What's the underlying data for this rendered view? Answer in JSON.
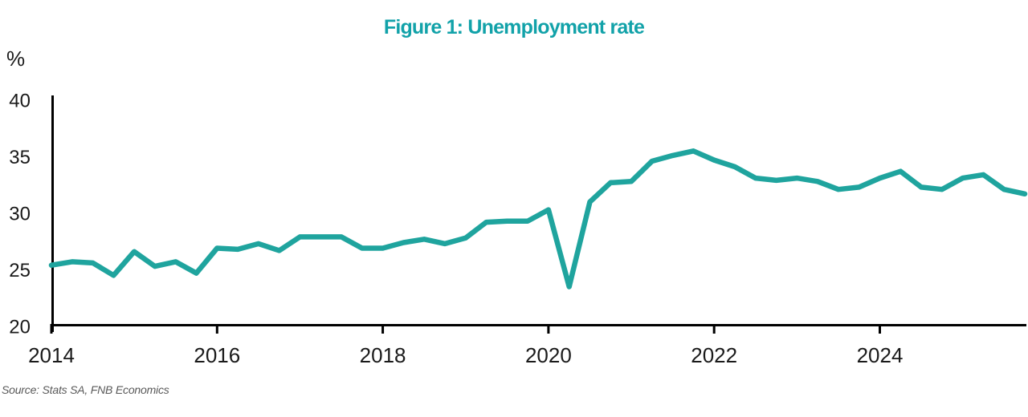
{
  "chart_data": {
    "type": "line",
    "title": "Figure 1: Unemployment rate",
    "ylabel": "%",
    "xlabel": "",
    "source": "Source: Stats SA, FNB Economics",
    "series_name": "Unemployment rate (%)",
    "x": [
      "2014Q1",
      "2014Q2",
      "2014Q3",
      "2014Q4",
      "2015Q1",
      "2015Q2",
      "2015Q3",
      "2015Q4",
      "2016Q1",
      "2016Q2",
      "2016Q3",
      "2016Q4",
      "2017Q1",
      "2017Q2",
      "2017Q3",
      "2017Q4",
      "2018Q1",
      "2018Q2",
      "2018Q3",
      "2018Q4",
      "2019Q1",
      "2019Q2",
      "2019Q3",
      "2019Q4",
      "2020Q1",
      "2020Q2",
      "2020Q3",
      "2020Q4",
      "2021Q1",
      "2021Q2",
      "2021Q3",
      "2021Q4",
      "2022Q1",
      "2022Q2",
      "2022Q3",
      "2022Q4",
      "2023Q1",
      "2023Q2",
      "2023Q3",
      "2023Q4",
      "2024Q1",
      "2024Q2",
      "2024Q3",
      "2024Q4",
      "2025Q1",
      "2025Q2",
      "2025Q3",
      "2025Q4"
    ],
    "values": [
      25.2,
      25.5,
      25.4,
      24.3,
      26.4,
      25.1,
      25.5,
      24.5,
      26.7,
      26.6,
      27.1,
      26.5,
      27.7,
      27.7,
      27.7,
      26.7,
      26.7,
      27.2,
      27.5,
      27.1,
      27.6,
      29.0,
      29.1,
      29.1,
      30.1,
      23.3,
      30.8,
      32.5,
      32.6,
      34.4,
      34.9,
      35.3,
      34.5,
      33.9,
      32.9,
      32.7,
      32.9,
      32.6,
      31.9,
      32.1,
      32.9,
      33.5,
      32.1,
      31.9,
      32.9,
      33.2,
      31.9,
      31.5
    ],
    "ylim": [
      20,
      40
    ],
    "y_ticks": [
      20,
      25,
      30,
      35,
      40
    ],
    "x_tick_labels": [
      "2014",
      "2016",
      "2018",
      "2020",
      "2022",
      "2024"
    ],
    "x_tick_base_year": 2014,
    "points_per_year": 4,
    "grid": false,
    "legend": "none",
    "line_color": "#1FA49E",
    "title_color": "#12A2A9",
    "axis_color": "#000000",
    "tick_text_color": "#1a1a1a",
    "source_color": "#595959"
  }
}
